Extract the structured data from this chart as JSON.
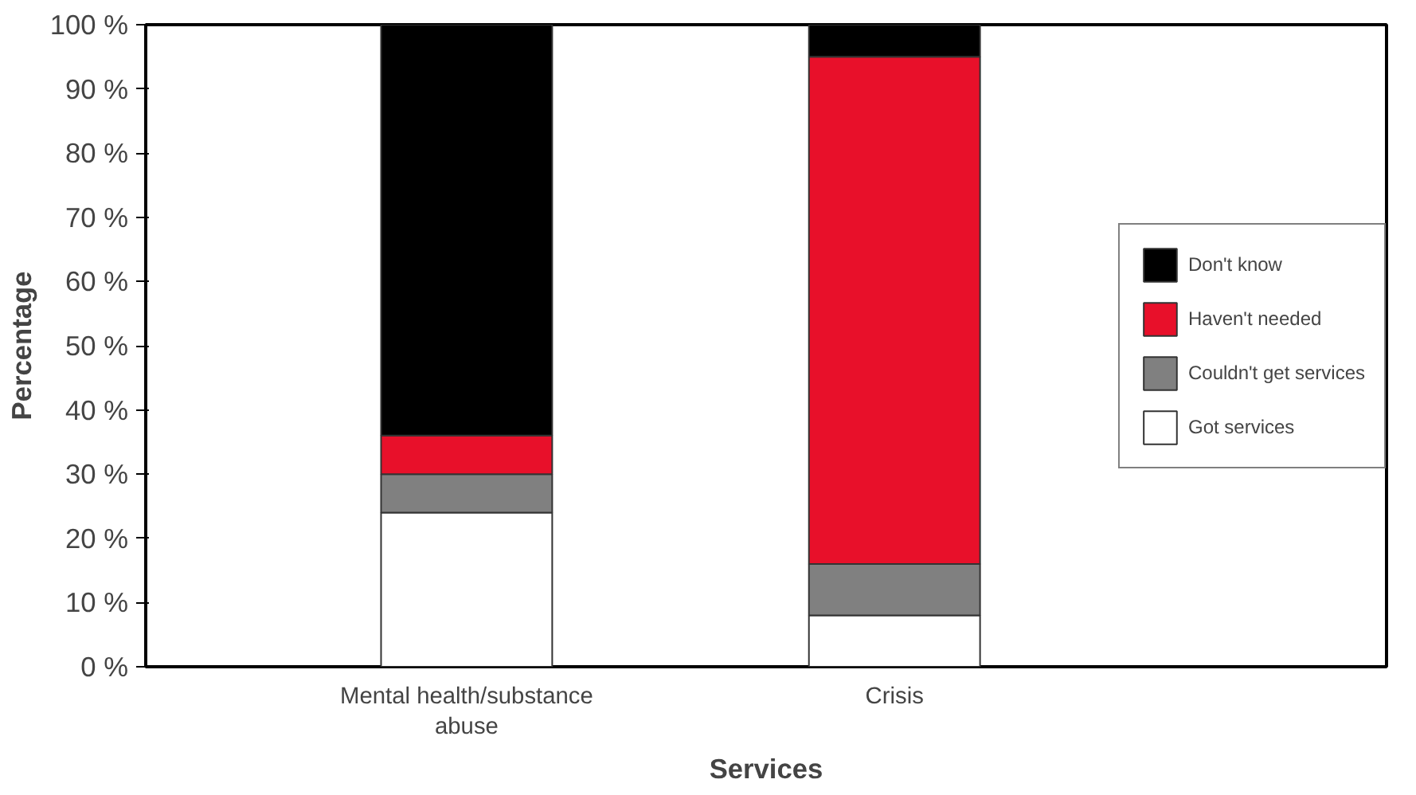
{
  "chart_data": {
    "type": "bar",
    "stacked": true,
    "xlabel": "Services",
    "ylabel": "Percentage",
    "categories": [
      "Mental health/substance abuse",
      "Crisis"
    ],
    "series": [
      {
        "name": "Got services",
        "color": "#ffffff",
        "values": [
          24,
          8
        ]
      },
      {
        "name": "Couldn't get services",
        "color": "#808080",
        "values": [
          6,
          8
        ]
      },
      {
        "name": "Haven't needed",
        "color": "#e8102a",
        "values": [
          6,
          79
        ]
      },
      {
        "name": "Don't know",
        "color": "#000000",
        "values": [
          64,
          5
        ]
      }
    ],
    "ylim": [
      0,
      100
    ],
    "yticks": [
      {
        "value": 0,
        "label": "0 %"
      },
      {
        "value": 10,
        "label": "10 %"
      },
      {
        "value": 20,
        "label": "20 %"
      },
      {
        "value": 30,
        "label": "30 %"
      },
      {
        "value": 40,
        "label": "40 %"
      },
      {
        "value": 50,
        "label": "50 %"
      },
      {
        "value": 60,
        "label": "60 %"
      },
      {
        "value": 70,
        "label": "70 %"
      },
      {
        "value": 80,
        "label": "80 %"
      },
      {
        "value": 90,
        "label": "90 %"
      },
      {
        "value": 100,
        "label": "100 %"
      }
    ],
    "grid": false,
    "legend": "right"
  }
}
